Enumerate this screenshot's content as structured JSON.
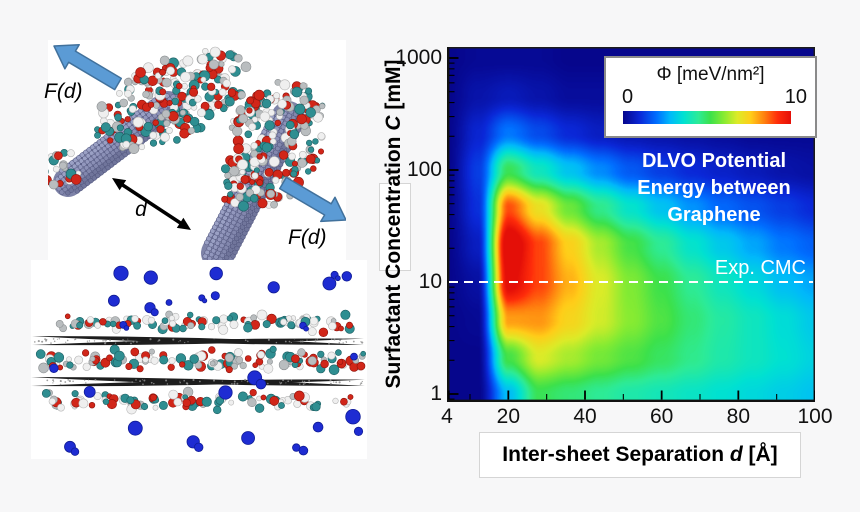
{
  "page": {
    "background": "#f7f7f8",
    "panel_background": "#ffffff"
  },
  "panels": {
    "nanotube_pair": {
      "force_label": "F(d)",
      "distance_label": "d",
      "colors": {
        "tube": "#8b90b6",
        "tube_light": "#9aa0c4",
        "tube_dark": "#70759b",
        "tube_edge": "#4e527a",
        "arrow_fill": "#5b9bd5",
        "arrow_edge": "#41719c",
        "atom_red": "#d12619",
        "atom_teal": "#2f8e91",
        "atom_white": "#efefef",
        "atom_gray": "#b9bdbf"
      }
    },
    "graphene_surfactant": {
      "colors": {
        "sheet": "#1d1d1d",
        "sheet_speckle": "#8f8f8f",
        "ion_blue": "#1e2cd2",
        "ion_edge": "#101c96",
        "atom_red": "#d12619",
        "atom_teal": "#2f8e91",
        "atom_white": "#efefef",
        "atom_gray": "#b9bdbf"
      }
    }
  },
  "chart": {
    "ylabel": "Surfactant Concentration C [mM]",
    "ylabel_parts": [
      "Surfactant Concentration ",
      "C",
      " [mM]"
    ],
    "xlabel": "Inter-sheet Separation d [Å]",
    "xlabel_parts": [
      "Inter-sheet Separation ",
      "d",
      " [Å]"
    ],
    "annotation_lines": [
      "DLVO Potential",
      "Energy between",
      "Graphene"
    ],
    "annotation_color": "#ffffff",
    "cmc_label": "Exp. CMC",
    "cmc_value_mM": 10,
    "cmc_line_color": "#ffffff",
    "legend": {
      "title": "Φ [meV/nm²]",
      "min": "0",
      "max": "10"
    },
    "x_ticks": [
      4,
      20,
      40,
      60,
      80,
      100
    ],
    "x_minor_ticks": [
      10,
      30,
      50,
      70,
      90
    ],
    "y_ticks": [
      1,
      10,
      100,
      1000
    ]
  },
  "chart_data": {
    "type": "heatmap",
    "title": "DLVO Potential Energy between Graphene",
    "xlabel": "Inter-sheet Separation d [Å]",
    "ylabel": "Surfactant Concentration C [mM]",
    "zlabel": "Φ [meV/nm²]",
    "x_range": [
      4,
      100
    ],
    "y_range": [
      1,
      1000
    ],
    "y_scale": "log",
    "value_range": [
      0,
      10
    ],
    "colormap": "jet",
    "colormap_stops": [
      [
        0.0,
        6,
        6,
        140
      ],
      [
        0.1,
        10,
        40,
        215
      ],
      [
        0.2,
        0,
        110,
        255
      ],
      [
        0.28,
        0,
        185,
        250
      ],
      [
        0.36,
        0,
        225,
        210
      ],
      [
        0.45,
        45,
        235,
        150
      ],
      [
        0.52,
        60,
        225,
        75
      ],
      [
        0.6,
        135,
        235,
        50
      ],
      [
        0.68,
        220,
        235,
        40
      ],
      [
        0.76,
        255,
        205,
        25
      ],
      [
        0.84,
        255,
        130,
        15
      ],
      [
        0.92,
        255,
        45,
        10
      ],
      [
        1.0,
        228,
        15,
        8
      ]
    ],
    "x_d_angstrom": [
      4,
      12,
      20,
      28,
      36,
      44,
      52,
      60,
      68,
      76,
      84,
      92,
      100
    ],
    "y_c_mM": [
      1,
      2.2,
      4.6,
      10,
      21.5,
      46.4,
      100,
      215,
      464,
      1000
    ],
    "phi_mev_nm2": [
      [
        0,
        0,
        2.9,
        5.1,
        4.8,
        4.5,
        4.2,
        4.0,
        3.8,
        3.6,
        3.4,
        3.2,
        3.0
      ],
      [
        0,
        0,
        5.3,
        6.8,
        6.3,
        5.8,
        5.4,
        5.0,
        4.6,
        4.2,
        3.9,
        3.6,
        3.3
      ],
      [
        0,
        0.1,
        8.1,
        8.2,
        7.4,
        6.7,
        6.0,
        5.4,
        4.8,
        4.3,
        3.9,
        3.5,
        3.1
      ],
      [
        0,
        0.3,
        10.2,
        9.0,
        7.9,
        6.8,
        5.9,
        5.2,
        4.5,
        3.9,
        3.4,
        2.9,
        2.6
      ],
      [
        0,
        0.7,
        10.7,
        9.0,
        7.5,
        6.3,
        5.3,
        4.5,
        3.7,
        3.1,
        2.6,
        2.1,
        1.8
      ],
      [
        0,
        1.1,
        8.9,
        7.1,
        5.7,
        4.6,
        3.7,
        3.0,
        2.4,
        1.9,
        1.6,
        1.3,
        1.0
      ],
      [
        0,
        1.3,
        5.1,
        3.9,
        3.0,
        2.3,
        1.7,
        1.3,
        1.0,
        0.8,
        0.6,
        0.4,
        0.3
      ],
      [
        0,
        0.9,
        2.1,
        1.5,
        1.0,
        0.7,
        0.5,
        0.4,
        0.3,
        0.2,
        0.1,
        0.1,
        0.1
      ],
      [
        0,
        0.4,
        0.6,
        0.4,
        0.2,
        0.2,
        0.1,
        0.1,
        0,
        0,
        0,
        0,
        0
      ],
      [
        0,
        0.1,
        0.1,
        0.1,
        0,
        0,
        0,
        0,
        0,
        0,
        0,
        0,
        0
      ]
    ],
    "cmc_line_mM": 10
  }
}
